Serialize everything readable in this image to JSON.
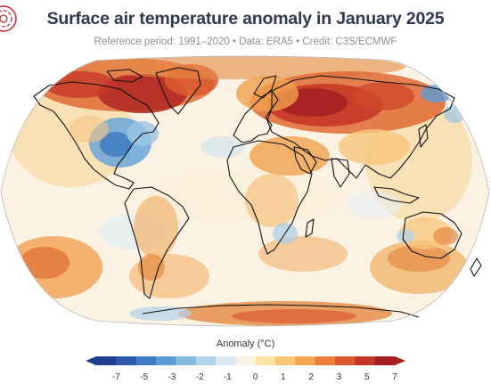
{
  "title": "Surface air temperature anomaly in January 2025",
  "subtitle": "Reference period: 1991–2020 • Data: ERA5 • Credit: C3S/ECMWF",
  "logo_icon": "c3s-logo-icon",
  "map": {
    "projection": "robinson",
    "ocean_color": "#fbf2e4",
    "coastline_color": "#111111"
  },
  "legend": {
    "title": "Anomaly (°C)",
    "tick_labels": [
      "-7",
      "-5",
      "-3",
      "-2",
      "-1",
      "0",
      "1",
      "2",
      "3",
      "5",
      "7"
    ],
    "colors": [
      "#1f3e8c",
      "#2c5aa8",
      "#3e7bc2",
      "#5d9bd2",
      "#85badf",
      "#b1d3ea",
      "#dbe9f2",
      "#f8f3e4",
      "#fbe3a6",
      "#f8c775",
      "#f3a54f",
      "#ea7f3a",
      "#dc5a2f",
      "#c53829",
      "#a51e22"
    ]
  }
}
